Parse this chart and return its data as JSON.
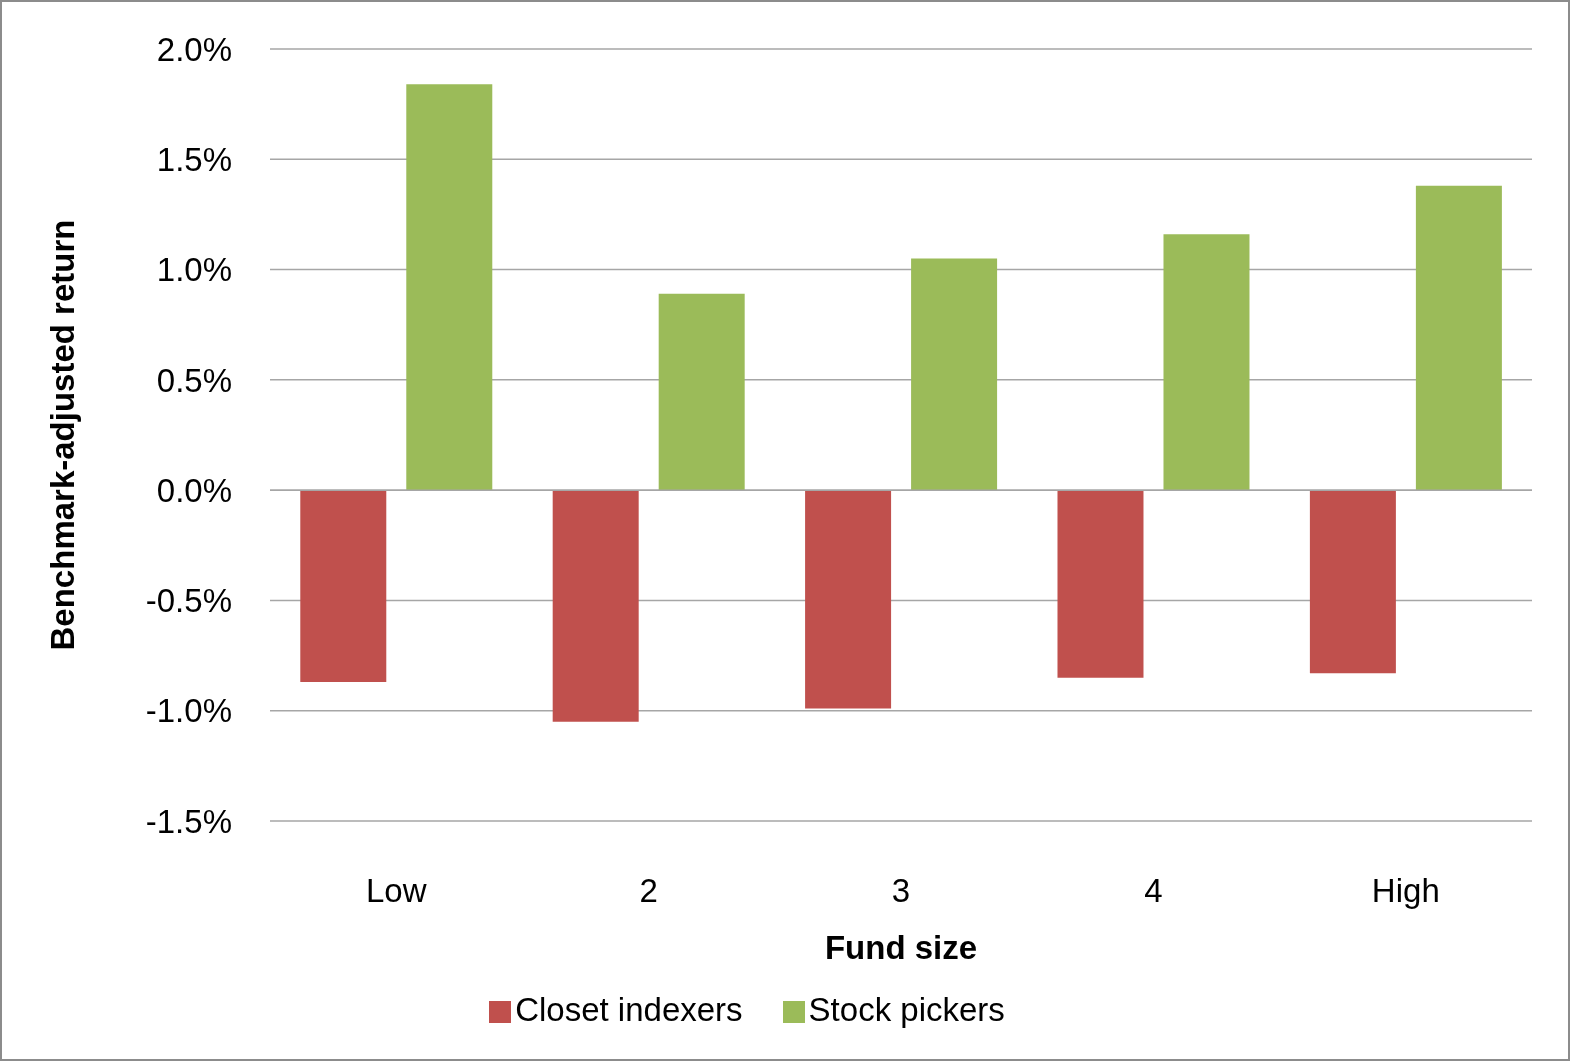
{
  "chart_data": {
    "type": "bar",
    "xlabel": "Fund size",
    "ylabel": "Benchmark-adjusted return",
    "categories": [
      "Low",
      "2",
      "3",
      "4",
      "High"
    ],
    "series": [
      {
        "name": "Closet indexers",
        "color": "#c0504d",
        "values": [
          -0.87,
          -1.05,
          -0.99,
          -0.85,
          -0.83
        ]
      },
      {
        "name": "Stock pickers",
        "color": "#9bbb59",
        "values": [
          1.84,
          0.89,
          1.05,
          1.16,
          1.38
        ]
      }
    ],
    "ylim": [
      -1.5,
      2.0
    ],
    "yticks": [
      {
        "value": -1.5,
        "label": "-1.5%"
      },
      {
        "value": -1.0,
        "label": "-1.0%"
      },
      {
        "value": -0.5,
        "label": "-0.5%"
      },
      {
        "value": 0,
        "label": "0.0%"
      },
      {
        "value": 0.5,
        "label": "0.5%"
      },
      {
        "value": 1.0,
        "label": "1.0%"
      },
      {
        "value": 1.5,
        "label": "1.5%"
      },
      {
        "value": 2.0,
        "label": "2.0%"
      }
    ],
    "grid": "y",
    "legend": "bottom"
  }
}
